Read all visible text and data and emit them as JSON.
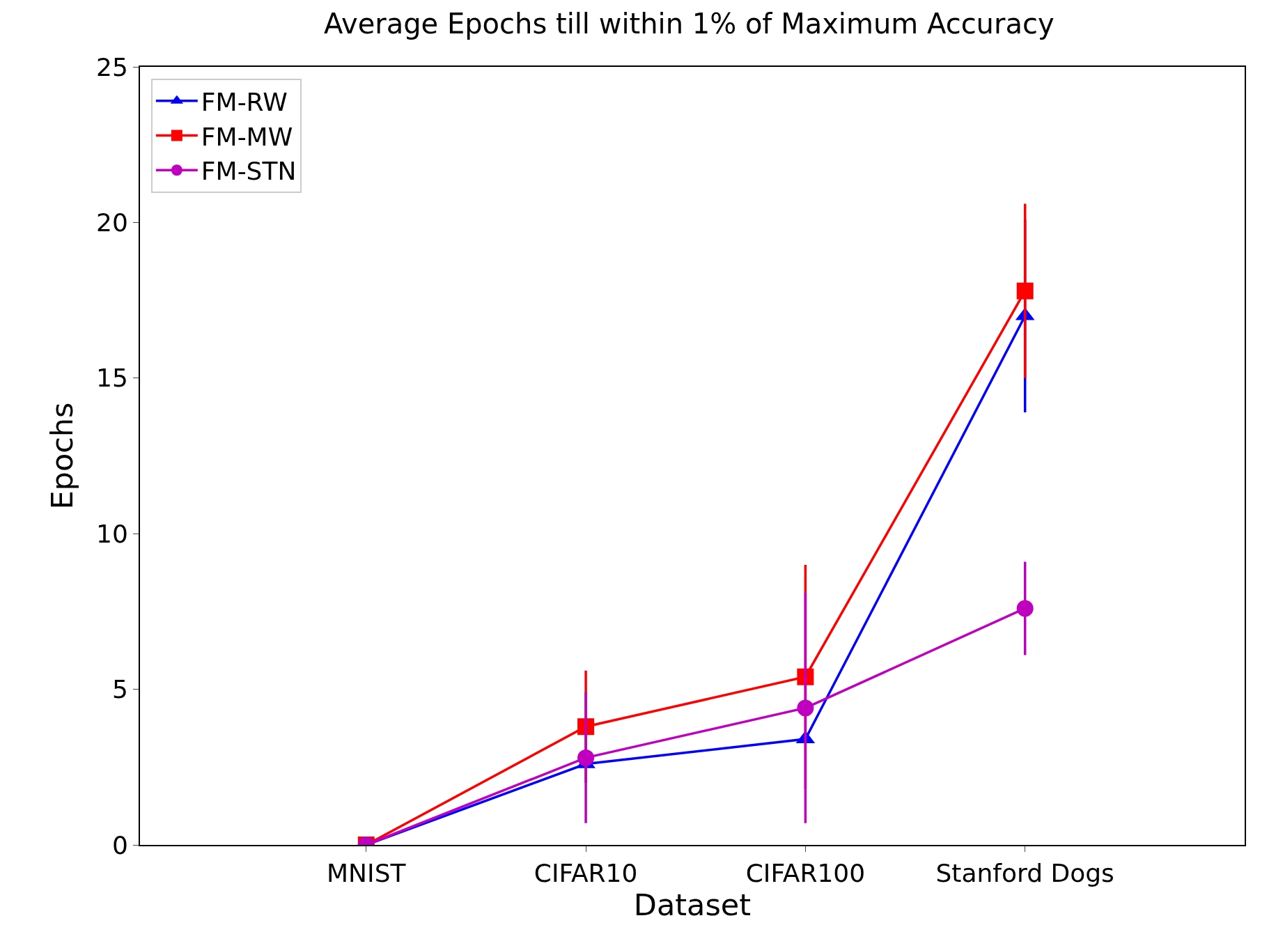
{
  "chart_data": {
    "type": "line",
    "title": "Average Epochs till within 1% of Maximum Accuracy",
    "xlabel": "Dataset",
    "ylabel": "Epochs",
    "categories": [
      "MNIST",
      "CIFAR10",
      "CIFAR100",
      "Stanford Dogs"
    ],
    "series": [
      {
        "name": "FM-RW",
        "color": "#0000ff",
        "marker": "triangle",
        "values": [
          0,
          2.6,
          3.4,
          17.0
        ],
        "errors": [
          null,
          null,
          null,
          3.1
        ]
      },
      {
        "name": "FM-MW",
        "color": "#ff0000",
        "marker": "square",
        "values": [
          0,
          3.8,
          5.4,
          17.8
        ],
        "errors": [
          null,
          1.8,
          3.6,
          2.8
        ]
      },
      {
        "name": "FM-STN",
        "color": "#bf00bf",
        "marker": "circle",
        "values": [
          0,
          2.8,
          4.4,
          7.6
        ],
        "errors": [
          null,
          2.1,
          3.7,
          1.5
        ]
      }
    ],
    "ylim": [
      0,
      25
    ],
    "yticks": [
      0,
      5,
      10,
      15,
      20,
      25
    ],
    "legend": "top left",
    "line_style": "solid"
  }
}
